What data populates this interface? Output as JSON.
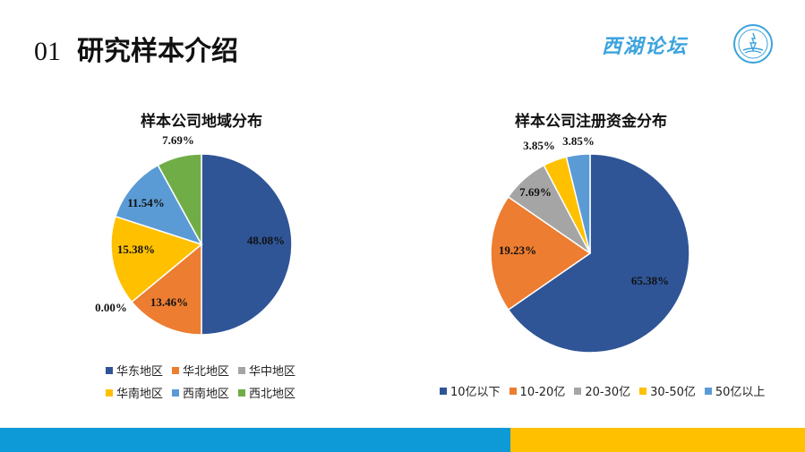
{
  "slide": {
    "number": "01",
    "title": "研究样本介绍",
    "logo_text": "西湖论坛"
  },
  "colors": {
    "accent_blue": "#0e9ad6",
    "accent_gold": "#ffc000"
  },
  "chart_data": [
    {
      "type": "pie",
      "title": "样本公司地域分布",
      "categories": [
        "华东地区",
        "华北地区",
        "华中地区",
        "华南地区",
        "西南地区",
        "西北地区"
      ],
      "values": [
        48.08,
        13.46,
        0.0,
        15.38,
        11.54,
        7.69
      ],
      "labels": [
        "48.08%",
        "13.46%",
        "0.00%",
        "15.38%",
        "11.54%",
        "7.69%"
      ],
      "colors": [
        "#2f5597",
        "#ed7d31",
        "#a5a5a5",
        "#ffc000",
        "#5b9bd5",
        "#70ad47"
      ],
      "legend": "bottom"
    },
    {
      "type": "pie",
      "title": "样本公司注册资金分布",
      "categories": [
        "10亿以下",
        "10-20亿",
        "20-30亿",
        "30-50亿",
        "50亿以上"
      ],
      "values": [
        65.38,
        19.23,
        7.69,
        3.85,
        3.85
      ],
      "labels": [
        "65.38%",
        "19.23%",
        "7.69%",
        "3.85%",
        "3.85%"
      ],
      "colors": [
        "#2f5597",
        "#ed7d31",
        "#a5a5a5",
        "#ffc000",
        "#5b9bd5"
      ],
      "legend": "bottom"
    }
  ]
}
